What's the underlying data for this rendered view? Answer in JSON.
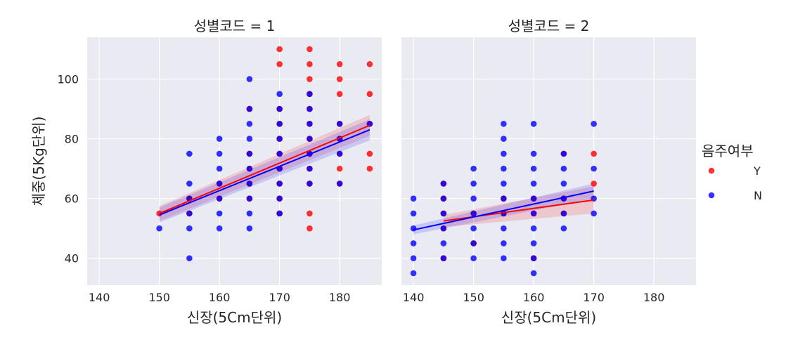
{
  "chart_data": {
    "type": "scatter",
    "facet_label": "성별코드",
    "panels": [
      {
        "title": "성별코드 = 1",
        "xlabel": "신장(5Cm단위)",
        "ylabel": "체중(5Kg단위)",
        "xlim": [
          138,
          187
        ],
        "ylim": [
          31,
          114
        ],
        "xticks": [
          140,
          150,
          160,
          170,
          180
        ],
        "yticks": [
          40,
          60,
          80,
          100
        ],
        "series": [
          {
            "name": "Y",
            "color": "#ff0000",
            "points": [
              [
                150,
                55
              ],
              [
                155,
                55
              ],
              [
                155,
                60
              ],
              [
                160,
                60
              ],
              [
                160,
                65
              ],
              [
                165,
                60
              ],
              [
                165,
                65
              ],
              [
                165,
                70
              ],
              [
                165,
                75
              ],
              [
                165,
                90
              ],
              [
                170,
                55
              ],
              [
                170,
                60
              ],
              [
                170,
                65
              ],
              [
                170,
                70
              ],
              [
                170,
                75
              ],
              [
                170,
                80
              ],
              [
                170,
                85
              ],
              [
                170,
                90
              ],
              [
                170,
                105
              ],
              [
                170,
                110
              ],
              [
                175,
                50
              ],
              [
                175,
                55
              ],
              [
                175,
                65
              ],
              [
                175,
                70
              ],
              [
                175,
                75
              ],
              [
                175,
                80
              ],
              [
                175,
                85
              ],
              [
                175,
                90
              ],
              [
                175,
                95
              ],
              [
                175,
                100
              ],
              [
                175,
                105
              ],
              [
                175,
                110
              ],
              [
                180,
                65
              ],
              [
                180,
                70
              ],
              [
                180,
                75
              ],
              [
                180,
                80
              ],
              [
                180,
                85
              ],
              [
                180,
                95
              ],
              [
                180,
                100
              ],
              [
                180,
                105
              ],
              [
                185,
                70
              ],
              [
                185,
                75
              ],
              [
                185,
                85
              ],
              [
                185,
                95
              ],
              [
                185,
                105
              ]
            ],
            "regression": [
              [
                150,
                55.0
              ],
              [
                185,
                84.5
              ]
            ],
            "ci_band": [
              [
                150,
                52.5,
                57.5
              ],
              [
                185,
                81.0,
                88.0
              ]
            ]
          },
          {
            "name": "N",
            "color": "#0000ff",
            "points": [
              [
                150,
                50
              ],
              [
                155,
                40
              ],
              [
                155,
                50
              ],
              [
                155,
                55
              ],
              [
                155,
                60
              ],
              [
                155,
                65
              ],
              [
                155,
                75
              ],
              [
                160,
                50
              ],
              [
                160,
                55
              ],
              [
                160,
                60
              ],
              [
                160,
                65
              ],
              [
                160,
                70
              ],
              [
                160,
                75
              ],
              [
                160,
                80
              ],
              [
                165,
                50
              ],
              [
                165,
                55
              ],
              [
                165,
                60
              ],
              [
                165,
                65
              ],
              [
                165,
                70
              ],
              [
                165,
                75
              ],
              [
                165,
                80
              ],
              [
                165,
                85
              ],
              [
                165,
                90
              ],
              [
                165,
                100
              ],
              [
                170,
                55
              ],
              [
                170,
                60
              ],
              [
                170,
                65
              ],
              [
                170,
                70
              ],
              [
                170,
                75
              ],
              [
                170,
                80
              ],
              [
                170,
                85
              ],
              [
                170,
                90
              ],
              [
                170,
                95
              ],
              [
                175,
                65
              ],
              [
                175,
                70
              ],
              [
                175,
                75
              ],
              [
                175,
                80
              ],
              [
                175,
                85
              ],
              [
                175,
                90
              ],
              [
                175,
                95
              ],
              [
                180,
                65
              ],
              [
                180,
                75
              ],
              [
                180,
                80
              ],
              [
                180,
                85
              ],
              [
                185,
                85
              ]
            ],
            "regression": [
              [
                150,
                54.5
              ],
              [
                185,
                83.0
              ]
            ],
            "ci_band": [
              [
                150,
                52.0,
                57.0
              ],
              [
                185,
                79.5,
                86.5
              ]
            ]
          }
        ]
      },
      {
        "title": "성별코드 = 2",
        "xlabel": "신장(5Cm단위)",
        "ylabel": "",
        "xlim": [
          138,
          187
        ],
        "ylim": [
          31,
          114
        ],
        "xticks": [
          140,
          150,
          160,
          170,
          180
        ],
        "yticks": [
          40,
          60,
          80,
          100
        ],
        "series": [
          {
            "name": "Y",
            "color": "#ff0000",
            "points": [
              [
                145,
                40
              ],
              [
                145,
                50
              ],
              [
                145,
                55
              ],
              [
                145,
                60
              ],
              [
                145,
                65
              ],
              [
                150,
                45
              ],
              [
                150,
                55
              ],
              [
                155,
                55
              ],
              [
                155,
                60
              ],
              [
                160,
                40
              ],
              [
                160,
                55
              ],
              [
                160,
                60
              ],
              [
                165,
                55
              ],
              [
                165,
                60
              ],
              [
                165,
                75
              ],
              [
                170,
                65
              ],
              [
                170,
                75
              ]
            ],
            "regression": [
              [
                145,
                52.5
              ],
              [
                170,
                59.5
              ]
            ],
            "ci_band": [
              [
                145,
                50.5,
                54.5
              ],
              [
                170,
                55.0,
                64.0
              ]
            ]
          },
          {
            "name": "N",
            "color": "#0000ff",
            "points": [
              [
                140,
                35
              ],
              [
                140,
                40
              ],
              [
                140,
                45
              ],
              [
                140,
                50
              ],
              [
                140,
                55
              ],
              [
                140,
                60
              ],
              [
                145,
                40
              ],
              [
                145,
                45
              ],
              [
                145,
                50
              ],
              [
                145,
                55
              ],
              [
                145,
                60
              ],
              [
                145,
                65
              ],
              [
                150,
                40
              ],
              [
                150,
                45
              ],
              [
                150,
                50
              ],
              [
                150,
                55
              ],
              [
                150,
                60
              ],
              [
                150,
                65
              ],
              [
                150,
                70
              ],
              [
                155,
                40
              ],
              [
                155,
                45
              ],
              [
                155,
                50
              ],
              [
                155,
                55
              ],
              [
                155,
                60
              ],
              [
                155,
                65
              ],
              [
                155,
                70
              ],
              [
                155,
                75
              ],
              [
                155,
                80
              ],
              [
                155,
                85
              ],
              [
                160,
                35
              ],
              [
                160,
                40
              ],
              [
                160,
                45
              ],
              [
                160,
                50
              ],
              [
                160,
                55
              ],
              [
                160,
                60
              ],
              [
                160,
                65
              ],
              [
                160,
                70
              ],
              [
                160,
                75
              ],
              [
                160,
                85
              ],
              [
                165,
                50
              ],
              [
                165,
                55
              ],
              [
                165,
                60
              ],
              [
                165,
                65
              ],
              [
                165,
                70
              ],
              [
                165,
                75
              ],
              [
                170,
                55
              ],
              [
                170,
                60
              ],
              [
                170,
                70
              ],
              [
                170,
                85
              ]
            ],
            "regression": [
              [
                140,
                49.5
              ],
              [
                170,
                62.5
              ]
            ],
            "ci_band": [
              [
                140,
                48.0,
                51.0
              ],
              [
                170,
                60.0,
                65.0
              ]
            ]
          }
        ]
      }
    ],
    "legend": {
      "title": "음주여부",
      "placement": "right",
      "entries": [
        {
          "label": "Y",
          "color": "#ff0000"
        },
        {
          "label": "N",
          "color": "#0000ff"
        }
      ]
    },
    "grid": true,
    "background": "#eaeaf2",
    "grid_color": "#ffffff"
  }
}
